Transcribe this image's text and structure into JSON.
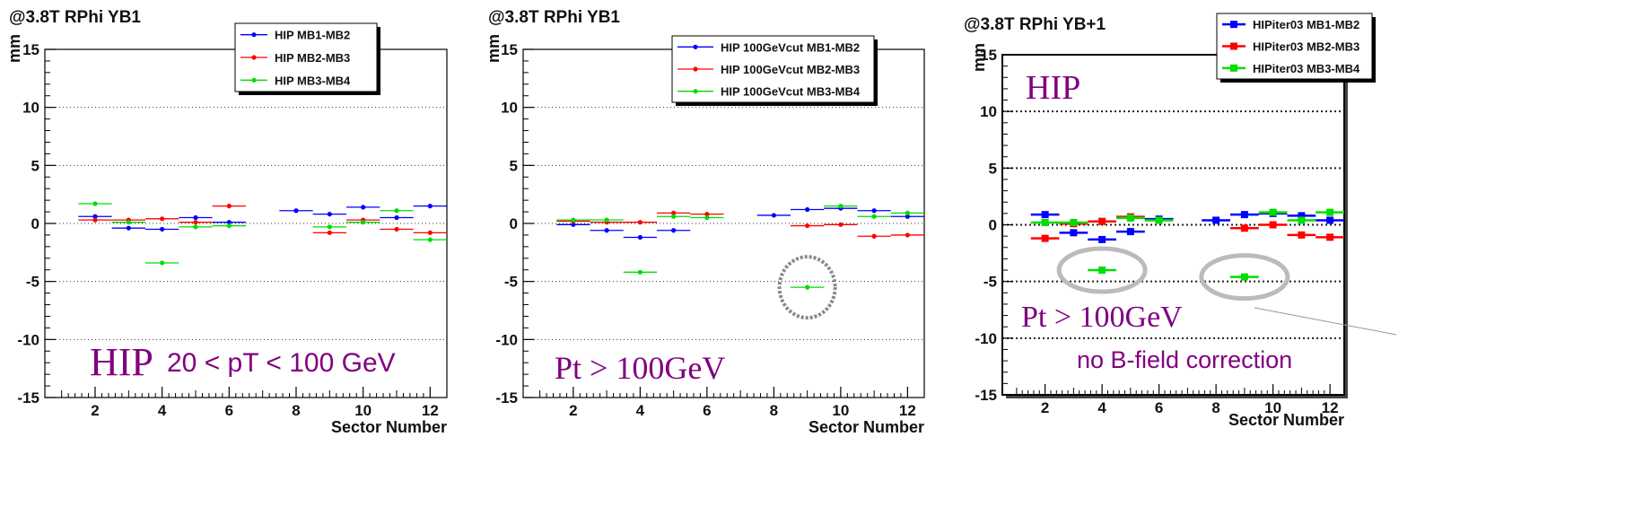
{
  "chart_data": [
    {
      "type": "scatter",
      "title": "@3.8T RPhi YB1",
      "ylabel": "mm",
      "xlabel": "Sector Number",
      "xlim": [
        0.5,
        12.5
      ],
      "ylim": [
        -15,
        15
      ],
      "xticks": [
        "2",
        "4",
        "6",
        "8",
        "10",
        "12"
      ],
      "yticks": [
        "15",
        "10",
        "5",
        "0",
        "-5",
        "-10",
        "-15"
      ],
      "grid": "horizontal dotted",
      "legend_position": "top-center",
      "series": [
        {
          "name": "HIP MB1-MB2",
          "color": "#0000ff",
          "x": [
            2,
            3,
            4,
            5,
            6,
            8,
            9,
            10,
            11,
            12
          ],
          "y": [
            0.6,
            -0.4,
            -0.5,
            0.5,
            0.1,
            1.1,
            0.8,
            1.4,
            0.5,
            1.5
          ]
        },
        {
          "name": "HIP MB2-MB3",
          "color": "#ff0000",
          "x": [
            2,
            3,
            4,
            5,
            6,
            9,
            10,
            11,
            12
          ],
          "y": [
            0.3,
            0.3,
            0.4,
            0.1,
            1.5,
            -0.8,
            0.3,
            -0.5,
            -0.8
          ]
        },
        {
          "name": "HIP MB3-MB4",
          "color": "#00dd00",
          "x": [
            2,
            3,
            4,
            5,
            6,
            9,
            10,
            11,
            12
          ],
          "y": [
            1.7,
            0.1,
            -3.4,
            -0.3,
            -0.2,
            -0.3,
            0.1,
            1.1,
            -1.4
          ]
        }
      ],
      "annotations": [
        "HIP",
        "20 < pT < 100 GeV"
      ]
    },
    {
      "type": "scatter",
      "title": "@3.8T RPhi YB1",
      "ylabel": "mm",
      "xlabel": "Sector Number",
      "xlim": [
        0.5,
        12.5
      ],
      "ylim": [
        -15,
        15
      ],
      "xticks": [
        "2",
        "4",
        "6",
        "8",
        "10",
        "12"
      ],
      "yticks": [
        "15",
        "10",
        "5",
        "0",
        "-5",
        "-10",
        "-15"
      ],
      "grid": "horizontal dotted",
      "legend_position": "top-right",
      "series": [
        {
          "name": "HIP 100GeVcut MB1-MB2",
          "color": "#0000ff",
          "x": [
            2,
            3,
            4,
            5,
            8,
            9,
            10,
            11,
            12
          ],
          "y": [
            -0.1,
            -0.6,
            -1.2,
            -0.6,
            0.7,
            1.2,
            1.3,
            1.1,
            0.6
          ]
        },
        {
          "name": "HIP 100GeVcut MB2-MB3",
          "color": "#ff0000",
          "x": [
            2,
            3,
            4,
            5,
            6,
            9,
            10,
            11,
            12
          ],
          "y": [
            0.2,
            0.1,
            0.1,
            0.9,
            0.8,
            -0.2,
            -0.1,
            -1.1,
            -1.0
          ]
        },
        {
          "name": "HIP 100GeVcut MB3-MB4",
          "color": "#00dd00",
          "x": [
            2,
            3,
            4,
            5,
            6,
            9,
            10,
            11,
            12
          ],
          "y": [
            0.3,
            0.3,
            -4.2,
            0.6,
            0.5,
            -5.5,
            1.5,
            0.6,
            0.9
          ]
        }
      ],
      "annotations": [
        "Pt > 100GeV"
      ]
    },
    {
      "type": "scatter",
      "title": "@3.8T RPhi YB+1",
      "ylabel": "mm",
      "xlabel": "Sector Number",
      "xlim": [
        0.5,
        12.5
      ],
      "ylim": [
        -15,
        15
      ],
      "xticks": [
        "2",
        "4",
        "6",
        "8",
        "10",
        "12"
      ],
      "yticks": [
        "15",
        "10",
        "5",
        "0",
        "-5",
        "-10",
        "-15"
      ],
      "grid": "horizontal dotted",
      "legend_position": "top-right",
      "series": [
        {
          "name": "HIPiter03 MB1-MB2",
          "color": "#0000ff",
          "x": [
            2,
            3,
            4,
            5,
            6,
            8,
            9,
            10,
            11,
            12
          ],
          "y": [
            0.9,
            -0.7,
            -1.3,
            -0.6,
            0.5,
            0.4,
            0.9,
            1.0,
            0.8,
            0.4
          ]
        },
        {
          "name": "HIPiter03 MB2-MB3",
          "color": "#ff0000",
          "x": [
            2,
            3,
            4,
            5,
            9,
            10,
            11,
            12
          ],
          "y": [
            -1.2,
            0.1,
            0.3,
            0.7,
            -0.3,
            0.0,
            -0.9,
            -1.1
          ]
        },
        {
          "name": "HIPiter03 MB3-MB4",
          "color": "#00dd00",
          "x": [
            2,
            3,
            4,
            5,
            6,
            9,
            10,
            11,
            12
          ],
          "y": [
            0.2,
            0.2,
            -4.0,
            0.6,
            0.4,
            -4.6,
            1.1,
            0.4,
            1.1
          ]
        }
      ],
      "annotations": [
        "HIP",
        "Pt > 100GeV",
        "no B-field correction"
      ]
    }
  ]
}
